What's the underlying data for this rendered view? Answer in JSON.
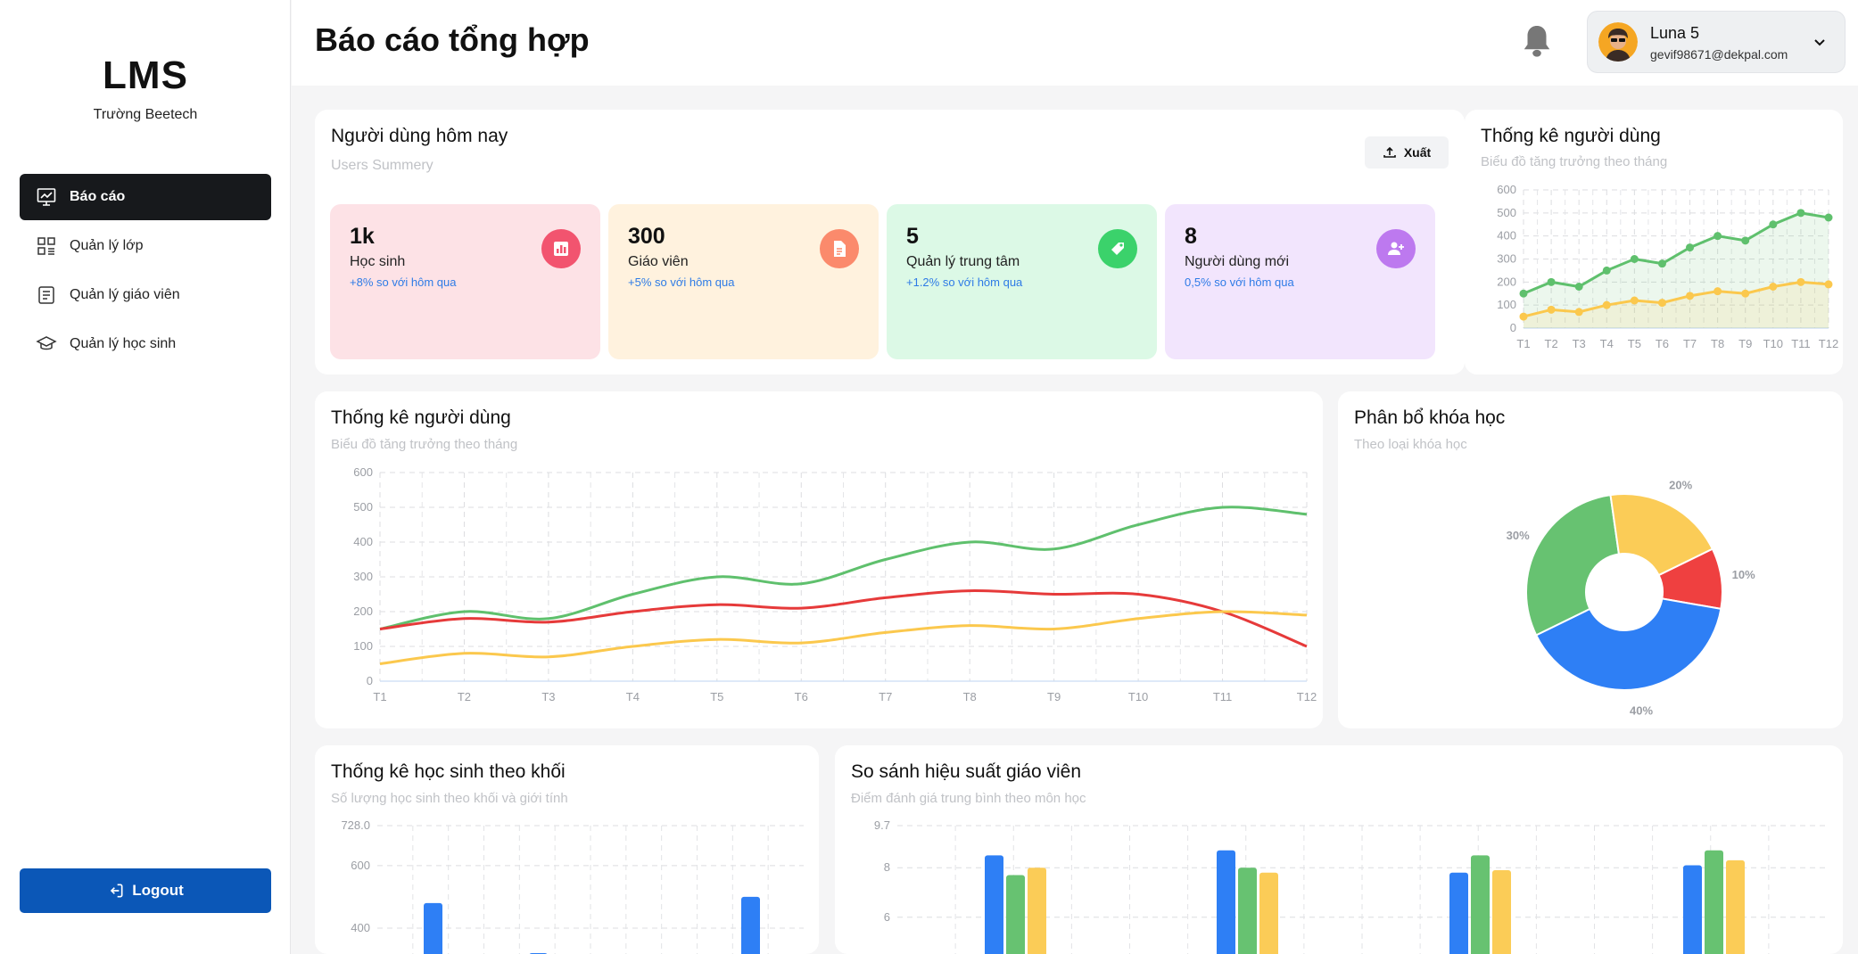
{
  "sidebar": {
    "logo": "LMS",
    "school": "Trường Beetech",
    "items": [
      {
        "label": "Báo cáo",
        "icon": "chart-icon",
        "active": true
      },
      {
        "label": "Quản lý lớp",
        "icon": "grid-icon",
        "active": false
      },
      {
        "label": "Quản lý giáo viên",
        "icon": "document-icon",
        "active": false
      },
      {
        "label": "Quản lý học sinh",
        "icon": "graduation-cap-icon",
        "active": false
      }
    ],
    "logout": "Logout"
  },
  "header": {
    "title": "Báo cáo tổng hợp",
    "user_name": "Luna 5",
    "user_email": "gevif98671@dekpal.com"
  },
  "today": {
    "title": "Người dùng hôm nay",
    "subtitle": "Users Summery",
    "export": "Xuất",
    "stats": [
      {
        "value": "1k",
        "label": "Học sinh",
        "change": "+8% so với hôm qua",
        "bg": "#fde2e6",
        "icon_bg": "#f2546f",
        "icon": "bar-chart-icon"
      },
      {
        "value": "300",
        "label": "Giáo viên",
        "change": "+5% so với hôm qua",
        "bg": "#fff2de",
        "icon_bg": "#fb8a6c",
        "icon": "file-icon"
      },
      {
        "value": "5",
        "label": "Quản lý trung tâm",
        "change": "+1.2% so với hôm qua",
        "bg": "#dcf9e6",
        "icon_bg": "#3bd26b",
        "icon": "tag-icon"
      },
      {
        "value": "8",
        "label": "Người dùng mới",
        "change": "0,5% so với hôm qua",
        "bg": "#f2e5fd",
        "icon_bg": "#bd79ef",
        "icon": "user-plus-icon"
      }
    ]
  },
  "small_chart_card": {
    "title": "Thống kê người dùng",
    "subtitle": "Biểu đồ tăng trưởng theo tháng"
  },
  "line_card": {
    "title": "Thống kê người dùng",
    "subtitle": "Biểu đồ tăng trưởng theo tháng"
  },
  "pie_card": {
    "title": "Phân bổ khóa học",
    "subtitle": "Theo loại khóa học"
  },
  "grade_card": {
    "title": "Thống kê học sinh theo khối",
    "subtitle": "Số lượng học sinh theo khối và giới tính"
  },
  "teacher_card": {
    "title": "So sánh hiệu suất giáo viên",
    "subtitle": "Điểm đánh giá trung bình theo môn học"
  },
  "chart_data": [
    {
      "type": "area",
      "categories": [
        "T1",
        "T2",
        "T3",
        "T4",
        "T5",
        "T6",
        "T7",
        "T8",
        "T9",
        "T10",
        "T11",
        "T12"
      ],
      "yticks": [
        0,
        100,
        200,
        300,
        400,
        500,
        600
      ],
      "ylim": [
        0,
        600
      ],
      "grid": true,
      "series": [
        {
          "color": "#5fc06d",
          "values": [
            150,
            200,
            180,
            250,
            300,
            280,
            350,
            400,
            380,
            450,
            500,
            480
          ]
        },
        {
          "color": "#fbc84d",
          "values": [
            50,
            80,
            70,
            100,
            120,
            110,
            140,
            160,
            150,
            180,
            200,
            190
          ]
        }
      ]
    },
    {
      "type": "line",
      "categories": [
        "T1",
        "T2",
        "T3",
        "T4",
        "T5",
        "T6",
        "T7",
        "T8",
        "T9",
        "T10",
        "T11",
        "T12"
      ],
      "yticks": [
        0,
        100,
        200,
        300,
        400,
        500,
        600
      ],
      "ylim": [
        0,
        600
      ],
      "grid": true,
      "series": [
        {
          "color": "#5fc06d",
          "values": [
            150,
            200,
            180,
            250,
            300,
            280,
            350,
            400,
            380,
            450,
            500,
            480
          ]
        },
        {
          "color": "#e63a3a",
          "values": [
            150,
            180,
            170,
            200,
            220,
            210,
            240,
            260,
            250,
            250,
            200,
            100
          ]
        },
        {
          "color": "#fbc84d",
          "values": [
            50,
            80,
            70,
            100,
            120,
            110,
            140,
            160,
            150,
            180,
            200,
            190
          ]
        }
      ]
    },
    {
      "type": "pie",
      "donut": true,
      "slices": [
        {
          "label": "10%",
          "value": 10,
          "color": "#ef4040"
        },
        {
          "label": "40%",
          "value": 40,
          "color": "#2e7ff5"
        },
        {
          "label": "30%",
          "value": 30,
          "color": "#67c271"
        },
        {
          "label": "20%",
          "value": 20,
          "color": "#fbcc57"
        }
      ]
    },
    {
      "type": "bar",
      "yticks": [
        "728.0",
        "600",
        "400"
      ],
      "ylim": [
        300,
        728
      ],
      "grid": true,
      "series": [
        {
          "color": "#2e7ff5",
          "values": [
            480,
            320,
            500
          ]
        }
      ]
    },
    {
      "type": "bar",
      "yticks": [
        "9.7",
        "8",
        "6"
      ],
      "ylim": [
        4.3,
        9.7
      ],
      "grid": true,
      "series": [
        {
          "color": "#2e7ff5",
          "values": [
            8.5,
            8.7,
            7.8,
            8.1
          ]
        },
        {
          "color": "#67c271",
          "values": [
            7.7,
            8.0,
            8.5,
            8.7
          ]
        },
        {
          "color": "#fbcc57",
          "values": [
            8.0,
            7.8,
            7.9,
            8.3
          ]
        }
      ]
    }
  ]
}
